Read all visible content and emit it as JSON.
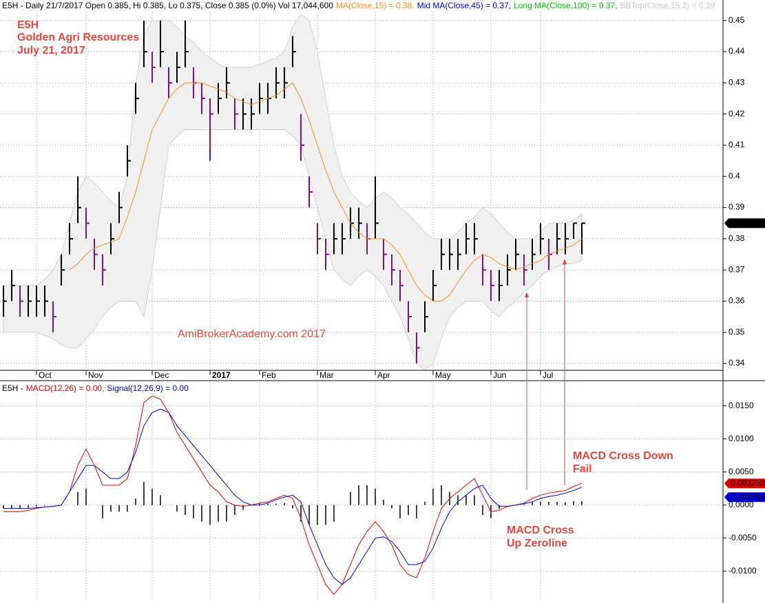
{
  "chart_data": [
    {
      "type": "ohlc",
      "title": "E5H - Daily 21/7/2017 Open 0.385, Hi 0.385, Lo 0.375, Close 0.385 (0.0%) Vol 17,044,600",
      "legend_extra": [
        {
          "text": "Mid MA(Close,45) = 0.37,",
          "color": "#0000ff"
        },
        {
          "text": "Long MA(Close,100) = 0.37,",
          "color": "#00c000"
        }
      ],
      "annotations": [
        "E5H",
        "Golden Agri Resources",
        "July 21, 2017"
      ],
      "watermark": "AmiBrokerAcademy.com 2017",
      "categories": [
        null,
        null,
        null,
        null,
        "Oct",
        null,
        null,
        null,
        null,
        null,
        "Nov",
        null,
        null,
        null,
        null,
        null,
        null,
        null,
        "Dec",
        null,
        null,
        null,
        null,
        null,
        null,
        "2017",
        null,
        null,
        null,
        null,
        null,
        "Feb",
        null,
        null,
        null,
        null,
        null,
        null,
        "Mar",
        null,
        null,
        null,
        null,
        null,
        null,
        "Apr",
        null,
        null,
        null,
        null,
        null,
        null,
        "May",
        null,
        null,
        null,
        null,
        null,
        null,
        "Jun",
        null,
        null,
        null,
        null,
        null,
        "Jul",
        null,
        null,
        null,
        null,
        null
      ],
      "high": [
        0.365,
        0.37,
        0.365,
        0.365,
        0.365,
        0.365,
        0.36,
        0.375,
        0.385,
        0.4,
        0.39,
        0.38,
        0.375,
        0.385,
        0.395,
        0.41,
        0.43,
        0.45,
        0.44,
        0.45,
        0.435,
        0.44,
        0.45,
        0.435,
        0.43,
        0.425,
        0.43,
        0.435,
        0.425,
        0.425,
        0.425,
        0.43,
        0.43,
        0.435,
        0.435,
        0.445,
        0.42,
        0.4,
        0.385,
        0.38,
        0.385,
        0.385,
        0.39,
        0.39,
        0.385,
        0.4,
        0.38,
        0.375,
        0.37,
        0.36,
        0.35,
        0.36,
        0.37,
        0.38,
        0.38,
        0.38,
        0.385,
        0.385,
        0.375,
        0.37,
        0.37,
        0.375,
        0.38,
        0.375,
        0.38,
        0.385,
        0.38,
        0.385,
        0.385,
        0.385,
        0.385
      ],
      "low": [
        0.355,
        0.36,
        0.355,
        0.355,
        0.355,
        0.355,
        0.35,
        0.365,
        0.375,
        0.385,
        0.38,
        0.37,
        0.365,
        0.375,
        0.385,
        0.4,
        0.42,
        0.435,
        0.43,
        0.435,
        0.425,
        0.43,
        0.435,
        0.425,
        0.42,
        0.405,
        0.42,
        0.425,
        0.415,
        0.415,
        0.415,
        0.42,
        0.42,
        0.425,
        0.425,
        0.435,
        0.405,
        0.39,
        0.375,
        0.37,
        0.375,
        0.375,
        0.38,
        0.38,
        0.375,
        0.38,
        0.37,
        0.365,
        0.36,
        0.35,
        0.34,
        0.35,
        0.36,
        0.37,
        0.37,
        0.37,
        0.375,
        0.375,
        0.365,
        0.36,
        0.36,
        0.365,
        0.37,
        0.365,
        0.37,
        0.375,
        0.37,
        0.375,
        0.375,
        0.38,
        0.375
      ],
      "close": [
        0.36,
        0.365,
        0.36,
        0.36,
        0.36,
        0.36,
        0.355,
        0.37,
        0.38,
        0.39,
        0.385,
        0.375,
        0.37,
        0.38,
        0.39,
        0.405,
        0.425,
        0.44,
        0.435,
        0.44,
        0.43,
        0.435,
        0.44,
        0.43,
        0.425,
        0.42,
        0.425,
        0.43,
        0.42,
        0.42,
        0.42,
        0.425,
        0.425,
        0.43,
        0.43,
        0.44,
        0.41,
        0.395,
        0.38,
        0.375,
        0.38,
        0.38,
        0.385,
        0.385,
        0.38,
        0.385,
        0.375,
        0.37,
        0.365,
        0.355,
        0.345,
        0.355,
        0.365,
        0.375,
        0.375,
        0.375,
        0.38,
        0.38,
        0.37,
        0.365,
        0.365,
        0.37,
        0.375,
        0.37,
        0.375,
        0.38,
        0.375,
        0.38,
        0.38,
        0.385,
        0.385
      ],
      "up_color": "#000000",
      "down_color": "#7f0f7f",
      "series": [
        {
          "name": "MA(Close,15) = 0.38,",
          "color": "#ff8c1a",
          "values": [
            null,
            null,
            null,
            null,
            null,
            null,
            null,
            null,
            0.37,
            0.372,
            0.375,
            0.377,
            0.378,
            0.379,
            0.38,
            0.387,
            0.395,
            0.405,
            0.415,
            0.42,
            0.425,
            0.428,
            0.43,
            0.43,
            0.43,
            0.429,
            0.428,
            0.427,
            0.425,
            0.424,
            0.423,
            0.424,
            0.425,
            0.426,
            0.428,
            0.43,
            0.425,
            0.418,
            0.41,
            0.402,
            0.395,
            0.39,
            0.385,
            0.382,
            0.38,
            0.38,
            0.38,
            0.378,
            0.375,
            0.37,
            0.365,
            0.362,
            0.36,
            0.36,
            0.362,
            0.366,
            0.37,
            0.373,
            0.375,
            0.374,
            0.372,
            0.371,
            0.37,
            0.371,
            0.372,
            0.373,
            0.375,
            0.376,
            0.377,
            0.378,
            0.38
          ]
        },
        {
          "name": "BBTop(Close,15,2) = 0.39",
          "color": "#c8c8c8",
          "values": [
            0.365,
            0.365,
            0.365,
            0.365,
            0.365,
            0.367,
            0.37,
            0.375,
            0.385,
            0.395,
            0.4,
            0.398,
            0.395,
            0.392,
            0.39,
            0.4,
            0.43,
            0.445,
            0.45,
            0.45,
            0.45,
            0.448,
            0.445,
            0.443,
            0.44,
            0.438,
            0.436,
            0.435,
            0.435,
            0.435,
            0.435,
            0.436,
            0.437,
            0.438,
            0.44,
            0.448,
            0.452,
            0.45,
            0.44,
            0.425,
            0.41,
            0.4,
            0.395,
            0.392,
            0.39,
            0.393,
            0.395,
            0.393,
            0.39,
            0.388,
            0.385,
            0.382,
            0.38,
            0.38,
            0.38,
            0.382,
            0.385,
            0.387,
            0.39,
            0.388,
            0.385,
            0.382,
            0.38,
            0.38,
            0.38,
            0.382,
            0.385,
            0.385,
            0.385,
            0.386,
            0.388
          ]
        }
      ],
      "bb_bottom": [
        0.35,
        0.35,
        0.35,
        0.35,
        0.35,
        0.349,
        0.348,
        0.346,
        0.345,
        0.345,
        0.348,
        0.351,
        0.355,
        0.358,
        0.36,
        0.36,
        0.36,
        0.355,
        0.37,
        0.39,
        0.41,
        0.413,
        0.415,
        0.415,
        0.415,
        0.415,
        0.415,
        0.415,
        0.415,
        0.415,
        0.415,
        0.415,
        0.415,
        0.415,
        0.415,
        0.413,
        0.41,
        0.4,
        0.39,
        0.38,
        0.37,
        0.367,
        0.365,
        0.368,
        0.37,
        0.368,
        0.365,
        0.36,
        0.355,
        0.348,
        0.34,
        0.338,
        0.34,
        0.348,
        0.355,
        0.358,
        0.36,
        0.36,
        0.36,
        0.357,
        0.355,
        0.358,
        0.36,
        0.363,
        0.365,
        0.368,
        0.37,
        0.371,
        0.372,
        0.372,
        0.373
      ],
      "band_color": "#f0f0f0",
      "last_value": 0.385,
      "ylim": [
        0.3378,
        0.4526
      ],
      "yticks": [
        0.34,
        0.35,
        0.36,
        0.37,
        0.38,
        0.39,
        0.4,
        0.41,
        0.42,
        0.43,
        0.44,
        0.45
      ],
      "grid": true
    },
    {
      "type": "line",
      "title": "E5H -",
      "annotations": [
        "MACD Cross Down",
        "Fail",
        "MACD Cross",
        "Up Zeroline"
      ],
      "series": [
        {
          "name": "MACD(12,26) = 0.00,",
          "color": "#e00000",
          "last": 0.003258,
          "values": [
            -0.001,
            -0.001,
            -0.001,
            -0.0008,
            -0.0005,
            -0.0003,
            -0.0002,
            0.0,
            0.002,
            0.006,
            0.0085,
            0.006,
            0.003,
            0.003,
            0.003,
            0.004,
            0.009,
            0.0155,
            0.0165,
            0.016,
            0.014,
            0.011,
            0.009,
            0.007,
            0.005,
            0.003,
            0.002,
            0.0005,
            0.0,
            -0.0002,
            0.0,
            0.0003,
            0.0005,
            0.001,
            0.0015,
            0.001,
            -0.002,
            -0.006,
            -0.009,
            -0.012,
            -0.0135,
            -0.012,
            -0.009,
            -0.006,
            -0.004,
            -0.0025,
            -0.004,
            -0.006,
            -0.009,
            -0.0105,
            -0.011,
            -0.008,
            -0.004,
            -0.0005,
            0.001,
            0.002,
            0.003,
            0.004,
            0.0015,
            -0.001,
            -0.0008,
            -0.0002,
            0.0,
            0.0003,
            0.001,
            0.0015,
            0.0018,
            0.002,
            0.0022,
            0.0028,
            0.0033
          ]
        },
        {
          "name": "Signal(12,26,9) = 0.00",
          "color": "#0000e0",
          "last": 0.002655,
          "values": [
            -0.0005,
            -0.0005,
            -0.0005,
            -0.0005,
            -0.0004,
            -0.0003,
            -0.0002,
            0.0,
            0.002,
            0.004,
            0.006,
            0.006,
            0.005,
            0.004,
            0.004,
            0.005,
            0.008,
            0.012,
            0.014,
            0.0145,
            0.014,
            0.012,
            0.0105,
            0.009,
            0.0075,
            0.006,
            0.0045,
            0.003,
            0.0015,
            0.0005,
            0.0,
            0.0,
            0.0003,
            0.0008,
            0.0012,
            0.0015,
            0.0005,
            -0.003,
            -0.006,
            -0.009,
            -0.011,
            -0.012,
            -0.011,
            -0.009,
            -0.007,
            -0.005,
            -0.0048,
            -0.0055,
            -0.007,
            -0.009,
            -0.009,
            -0.0085,
            -0.0065,
            -0.0035,
            -0.001,
            0.0005,
            0.0015,
            0.0025,
            0.003,
            0.001,
            -0.0002,
            -0.0002,
            0.0,
            0.0002,
            0.0005,
            0.001,
            0.0013,
            0.0015,
            0.0018,
            0.0022,
            0.0027
          ]
        }
      ],
      "histogram": {
        "color": "#000000",
        "values": [
          -0.0005,
          -0.0005,
          -0.0005,
          -0.0004,
          -0.0002,
          -0.0001,
          0.0,
          0.0,
          0.0,
          0.002,
          0.0025,
          0.0,
          -0.002,
          -0.001,
          -0.001,
          -0.001,
          0.001,
          0.0035,
          0.0025,
          0.0015,
          0.0,
          -0.001,
          -0.0015,
          -0.002,
          -0.0025,
          -0.003,
          -0.0025,
          -0.0025,
          -0.0015,
          -0.0007,
          0.0,
          0.0003,
          0.0002,
          0.0002,
          0.0003,
          -0.0005,
          -0.0025,
          -0.003,
          -0.003,
          -0.003,
          -0.0025,
          0.0,
          0.002,
          0.003,
          0.003,
          0.0025,
          0.0008,
          -0.0005,
          -0.002,
          -0.0015,
          -0.002,
          0.0005,
          0.0025,
          0.003,
          0.002,
          0.0015,
          0.0015,
          0.0015,
          -0.0015,
          -0.002,
          -0.0006,
          0.0,
          0.0,
          0.0001,
          0.0005,
          0.0005,
          0.0005,
          0.0005,
          0.0004,
          0.0006,
          0.0006
        ]
      },
      "ylim": [
        -0.0147,
        0.0186
      ],
      "yticks": [
        {
          "value": -0.01,
          "label": "-0.0100"
        },
        {
          "value": -0.005,
          "label": "-0.0050"
        },
        {
          "value": 0,
          "label": "0.0000"
        },
        {
          "value": 0.005,
          "label": "0.0050"
        },
        {
          "value": 0.01,
          "label": "0.0100"
        },
        {
          "value": 0.015,
          "label": "0.0150"
        }
      ],
      "grid": true
    }
  ]
}
